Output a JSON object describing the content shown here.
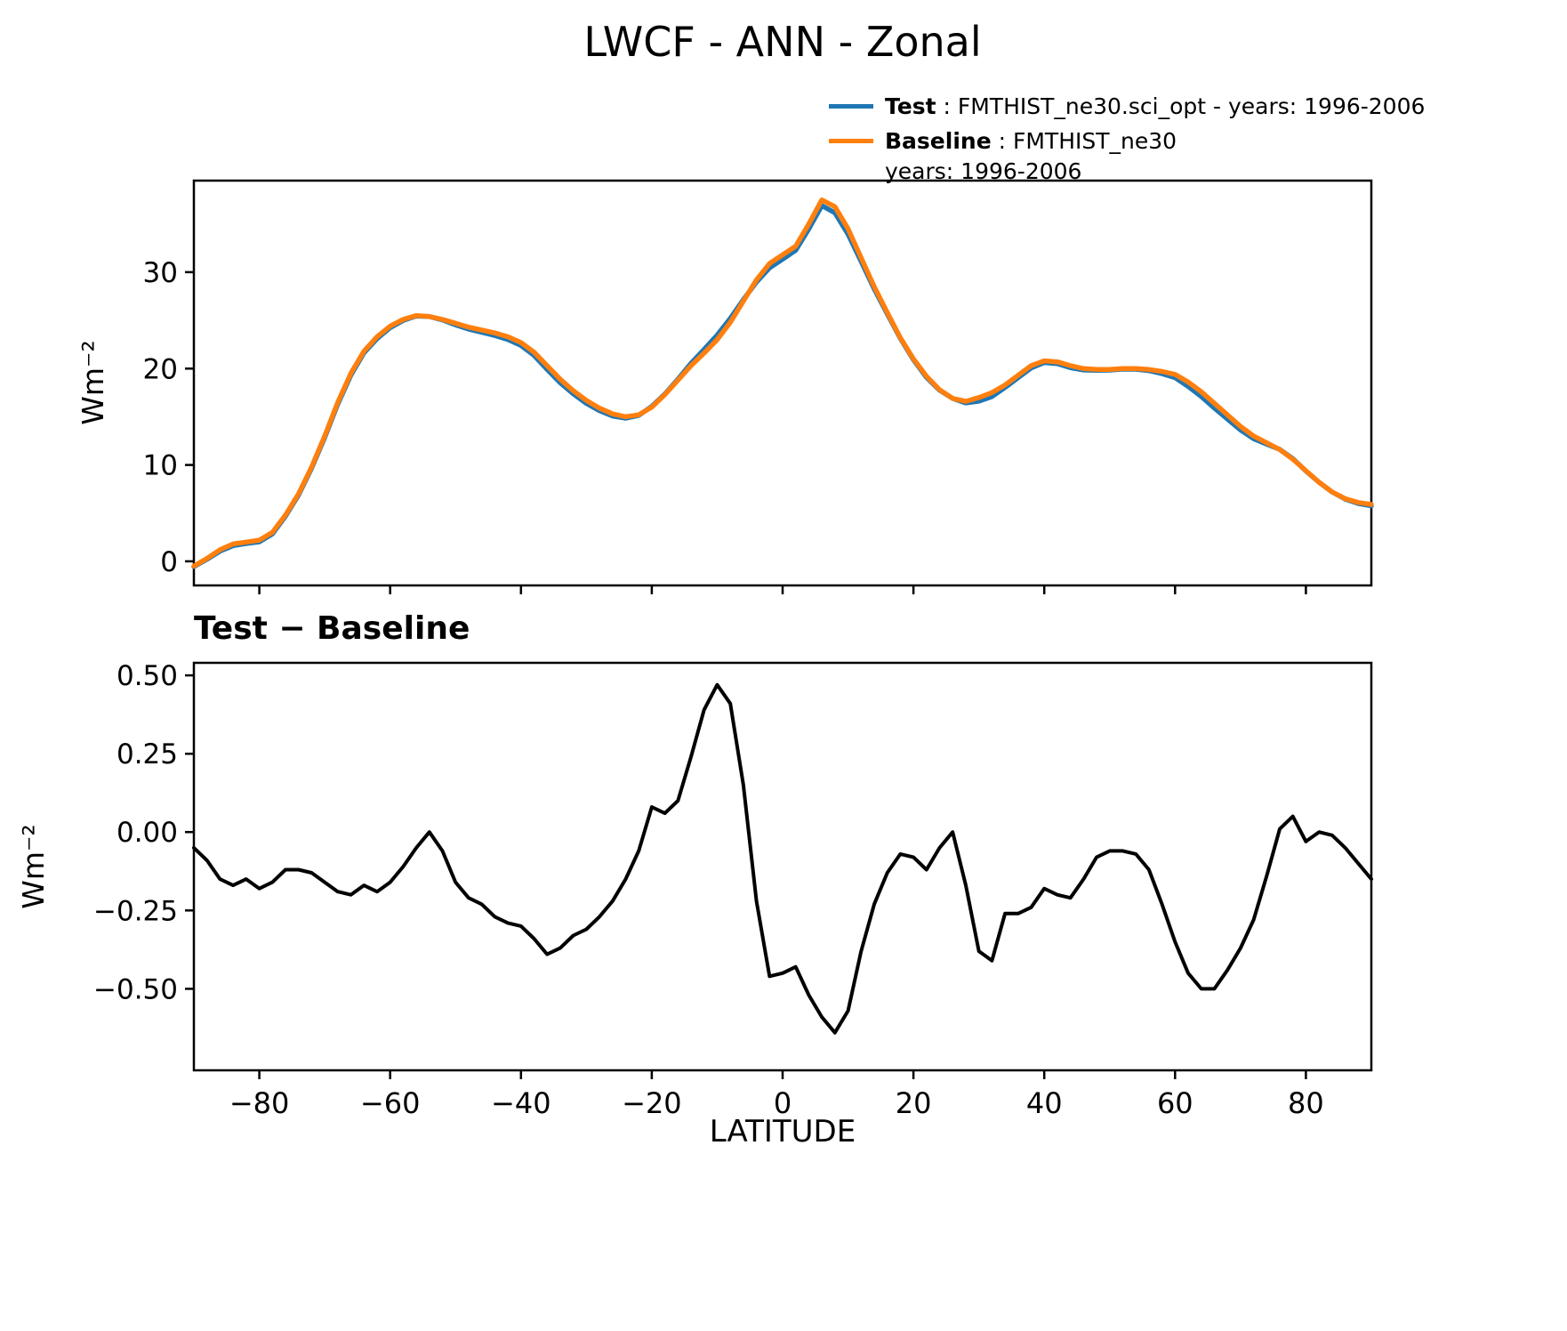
{
  "title": "LWCF - ANN - Zonal",
  "subtitle": "Test − Baseline",
  "xlabel": "LATITUDE",
  "top_ylabel": "Wm⁻²",
  "bottom_ylabel": "Wm⁻²",
  "legend": {
    "position": "upper right above axes",
    "entries": [
      {
        "label": "Test",
        "text": " : FMTHIST_ne30.sci_opt - years: 1996-2006",
        "color": "#1f77b4"
      },
      {
        "label": "Baseline",
        "text": " : FMTHIST_ne30",
        "extra": "years: 1996-2006",
        "color": "#ff7f0e"
      }
    ]
  },
  "colors": {
    "test": "#1f77b4",
    "baseline": "#ff7f0e",
    "difference": "#000000",
    "axes": "#000000"
  },
  "chart_data": [
    {
      "type": "line",
      "title": "LWCF - ANN - Zonal",
      "ylabel": "Wm⁻²",
      "grid": false,
      "xlim": [
        -90,
        90
      ],
      "ylim": [
        -2.5,
        39.5
      ],
      "yticks": [
        0,
        10,
        20,
        30
      ],
      "yticklabels": [
        "0",
        "10",
        "20",
        "30"
      ],
      "xticks": [
        -80,
        -60,
        -40,
        -20,
        0,
        20,
        40,
        60,
        80
      ],
      "xticklabels": [
        "",
        "",
        "",
        "",
        "",
        "",
        "",
        "",
        ""
      ],
      "x": [
        -90,
        -88,
        -86,
        -84,
        -82,
        -80,
        -78,
        -76,
        -74,
        -72,
        -70,
        -68,
        -66,
        -64,
        -62,
        -60,
        -58,
        -56,
        -54,
        -52,
        -50,
        -48,
        -46,
        -44,
        -42,
        -40,
        -38,
        -36,
        -34,
        -32,
        -30,
        -28,
        -26,
        -24,
        -22,
        -20,
        -18,
        -16,
        -14,
        -12,
        -10,
        -8,
        -6,
        -4,
        -2,
        0,
        2,
        4,
        6,
        8,
        10,
        12,
        14,
        16,
        18,
        20,
        22,
        24,
        26,
        28,
        30,
        32,
        34,
        36,
        38,
        40,
        42,
        44,
        46,
        48,
        50,
        52,
        54,
        56,
        58,
        60,
        62,
        64,
        66,
        68,
        70,
        72,
        74,
        76,
        78,
        80,
        82,
        84,
        86,
        88,
        90
      ],
      "series": [
        {
          "name": "Test",
          "color": "#1f77b4",
          "values": [
            -0.55,
            0.21,
            1.05,
            1.63,
            1.85,
            2.02,
            2.84,
            4.68,
            6.88,
            9.67,
            12.84,
            16.31,
            19.3,
            21.63,
            23.11,
            24.24,
            24.99,
            25.45,
            25.4,
            25.04,
            24.54,
            24.09,
            23.77,
            23.43,
            23.01,
            22.4,
            21.36,
            19.91,
            18.53,
            17.37,
            16.39,
            15.63,
            15.08,
            14.85,
            15.14,
            16.08,
            17.36,
            18.9,
            20.54,
            21.99,
            23.47,
            25.21,
            27.15,
            28.98,
            30.44,
            31.35,
            32.27,
            34.48,
            36.91,
            36.16,
            33.93,
            31.12,
            28.27,
            25.67,
            23.13,
            20.92,
            19.08,
            17.75,
            16.9,
            16.43,
            16.62,
            17.09,
            18.04,
            19.04,
            20.06,
            20.62,
            20.5,
            20.09,
            19.85,
            19.82,
            19.84,
            19.94,
            19.93,
            19.78,
            19.47,
            19.05,
            18.15,
            17.1,
            15.9,
            14.76,
            13.63,
            12.72,
            12.16,
            11.61,
            10.65,
            9.37,
            8.2,
            7.19,
            6.45,
            6.0,
            5.75
          ]
        },
        {
          "name": "Baseline",
          "color": "#ff7f0e",
          "values": [
            -0.5,
            0.3,
            1.2,
            1.8,
            2.0,
            2.2,
            3.0,
            4.8,
            7.0,
            9.8,
            13.0,
            16.5,
            19.5,
            21.8,
            23.3,
            24.4,
            25.1,
            25.5,
            25.4,
            25.1,
            24.7,
            24.3,
            24.0,
            23.7,
            23.3,
            22.7,
            21.7,
            20.3,
            18.9,
            17.7,
            16.7,
            15.9,
            15.3,
            15.0,
            15.2,
            16.0,
            17.3,
            18.8,
            20.3,
            21.6,
            23.0,
            24.8,
            27.0,
            29.2,
            30.9,
            31.8,
            32.7,
            35.0,
            37.5,
            36.8,
            34.5,
            31.5,
            28.5,
            25.8,
            23.2,
            21.0,
            19.2,
            17.8,
            16.9,
            16.6,
            17.0,
            17.5,
            18.3,
            19.3,
            20.3,
            20.8,
            20.7,
            20.3,
            20.0,
            19.9,
            19.9,
            20.0,
            20.0,
            19.9,
            19.7,
            19.4,
            18.6,
            17.6,
            16.4,
            15.2,
            14.0,
            13.0,
            12.3,
            11.6,
            10.6,
            9.4,
            8.2,
            7.2,
            6.5,
            6.1,
            5.9
          ]
        }
      ]
    },
    {
      "type": "line",
      "title": "Test − Baseline",
      "ylabel": "Wm⁻²",
      "xlabel": "LATITUDE",
      "grid": false,
      "xlim": [
        -90,
        90
      ],
      "ylim": [
        -0.76,
        0.54
      ],
      "yticks": [
        0.5,
        0.25,
        0.0,
        -0.25,
        -0.5
      ],
      "yticklabels": [
        "0.50",
        "0.25",
        "0.00",
        "−0.25",
        "−0.50"
      ],
      "xticks": [
        -80,
        -60,
        -40,
        -20,
        0,
        20,
        40,
        60,
        80
      ],
      "xticklabels": [
        "−80",
        "−60",
        "−40",
        "−20",
        "0",
        "20",
        "40",
        "60",
        "80"
      ],
      "x": [
        -90,
        -88,
        -86,
        -84,
        -82,
        -80,
        -78,
        -76,
        -74,
        -72,
        -70,
        -68,
        -66,
        -64,
        -62,
        -60,
        -58,
        -56,
        -54,
        -52,
        -50,
        -48,
        -46,
        -44,
        -42,
        -40,
        -38,
        -36,
        -34,
        -32,
        -30,
        -28,
        -26,
        -24,
        -22,
        -20,
        -18,
        -16,
        -14,
        -12,
        -10,
        -8,
        -6,
        -4,
        -2,
        0,
        2,
        4,
        6,
        8,
        10,
        12,
        14,
        16,
        18,
        20,
        22,
        24,
        26,
        28,
        30,
        32,
        34,
        36,
        38,
        40,
        42,
        44,
        46,
        48,
        50,
        52,
        54,
        56,
        58,
        60,
        62,
        64,
        66,
        68,
        70,
        72,
        74,
        76,
        78,
        80,
        82,
        84,
        86,
        88,
        90
      ],
      "series": [
        {
          "name": "Test − Baseline",
          "color": "#000000",
          "values": [
            -0.05,
            -0.09,
            -0.15,
            -0.17,
            -0.15,
            -0.18,
            -0.16,
            -0.12,
            -0.12,
            -0.13,
            -0.16,
            -0.19,
            -0.2,
            -0.17,
            -0.19,
            -0.16,
            -0.11,
            -0.05,
            0.0,
            -0.06,
            -0.16,
            -0.21,
            -0.23,
            -0.27,
            -0.29,
            -0.3,
            -0.34,
            -0.39,
            -0.37,
            -0.33,
            -0.31,
            -0.27,
            -0.22,
            -0.15,
            -0.06,
            0.08,
            0.06,
            0.1,
            0.24,
            0.39,
            0.47,
            0.41,
            0.15,
            -0.22,
            -0.46,
            -0.45,
            -0.43,
            -0.52,
            -0.59,
            -0.64,
            -0.57,
            -0.38,
            -0.23,
            -0.13,
            -0.07,
            -0.08,
            -0.12,
            -0.05,
            0.0,
            -0.17,
            -0.38,
            -0.41,
            -0.26,
            -0.26,
            -0.24,
            -0.18,
            -0.2,
            -0.21,
            -0.15,
            -0.08,
            -0.06,
            -0.06,
            -0.07,
            -0.12,
            -0.23,
            -0.35,
            -0.45,
            -0.5,
            -0.5,
            -0.44,
            -0.37,
            -0.28,
            -0.14,
            0.01,
            0.05,
            -0.03,
            0.0,
            -0.01,
            -0.05,
            -0.1,
            -0.15
          ]
        }
      ]
    }
  ]
}
